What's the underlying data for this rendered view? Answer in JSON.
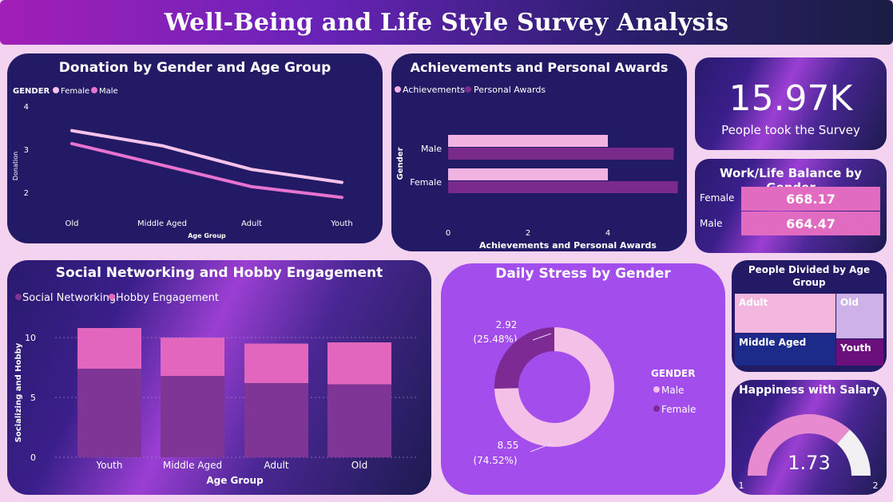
{
  "dashboard": {
    "title": "Well-Being and Life Style Survey Analysis"
  },
  "donation": {
    "title": "Donation by Gender and Age Group",
    "legend_title": "GENDER",
    "series_names": [
      "Female",
      "Male"
    ],
    "xlabel": "Age Group",
    "ylabel": "Donation",
    "yticks": [
      "4",
      "3",
      "2"
    ],
    "categories": [
      "Old",
      "Middle Aged",
      "Adult",
      "Youth"
    ]
  },
  "achievements": {
    "title": "Achievements and Personal Awards",
    "legend": [
      "Achievements",
      "Personal Awards"
    ],
    "ylabel": "Gender",
    "xlabel": "Achievements and Personal Awards",
    "categories": [
      "Male",
      "Female"
    ],
    "xticks": [
      "0",
      "2",
      "4"
    ]
  },
  "kpi": {
    "value": "15.97K",
    "label": "People took the Survey"
  },
  "worklife": {
    "title": "Work/Life Balance by Gender",
    "rows": [
      {
        "label": "Female",
        "value": "668.17"
      },
      {
        "label": "Male",
        "value": "664.47"
      }
    ]
  },
  "social": {
    "title": "Social Networking and Hobby Engagement",
    "legend": [
      "Social Networking",
      "Hobby Engagement"
    ],
    "ylabel": "Socializing and Hobby",
    "xlabel": "Age Group",
    "yticks": [
      "10",
      "5",
      "0"
    ],
    "categories": [
      "Youth",
      "Middle Aged",
      "Adult",
      "Old"
    ]
  },
  "stress": {
    "title": "Daily Stress by Gender",
    "legend_title": "GENDER",
    "legend": [
      "Male",
      "Female"
    ],
    "male_value": "8.55",
    "male_pct": "(74.52%)",
    "female_value": "2.92",
    "female_pct": "(25.48%)"
  },
  "age_split": {
    "title": "People Divided by Age Group",
    "cells": [
      "Adult",
      "Old",
      "Middle Aged",
      "Youth"
    ]
  },
  "happiness": {
    "title": "Happiness with Salary",
    "value": "1.73",
    "min": "1",
    "max": "2"
  },
  "colors": {
    "female": "#f6c3ea",
    "male": "#e673cf",
    "achievements": "#f2b3e3",
    "personal_awards": "#7a2a8a",
    "social_networking": "#7e3596",
    "hobby": "#e266bd",
    "donut_male": "#f5c0e8",
    "donut_female": "#7d2a95",
    "gauge_fill": "#e78ad0",
    "gauge_track": "#f2f0f2"
  },
  "chart_data": [
    {
      "type": "line",
      "title": "Donation by Gender and Age Group",
      "xlabel": "Age Group",
      "ylabel": "Donation",
      "categories": [
        "Old",
        "Middle Aged",
        "Adult",
        "Youth"
      ],
      "ylim": [
        1.5,
        4
      ],
      "series": [
        {
          "name": "Female",
          "values": [
            3.45,
            3.1,
            2.55,
            2.25
          ]
        },
        {
          "name": "Male",
          "values": [
            3.15,
            2.65,
            2.15,
            1.9
          ]
        }
      ]
    },
    {
      "type": "bar",
      "orientation": "horizontal",
      "title": "Achievements and Personal Awards",
      "xlabel": "Achievements and Personal Awards",
      "ylabel": "Gender",
      "categories": [
        "Male",
        "Female"
      ],
      "xlim": [
        0,
        6
      ],
      "series": [
        {
          "name": "Achievements",
          "values": [
            4.0,
            4.0
          ]
        },
        {
          "name": "Personal Awards",
          "values": [
            5.65,
            5.75
          ]
        }
      ]
    },
    {
      "type": "bar",
      "stacked": true,
      "title": "Social Networking and Hobby Engagement",
      "xlabel": "Age Group",
      "ylabel": "Socializing and Hobby",
      "categories": [
        "Youth",
        "Middle Aged",
        "Adult",
        "Old"
      ],
      "ylim": [
        0,
        12
      ],
      "series": [
        {
          "name": "Social Networking",
          "values": [
            7.4,
            6.8,
            6.2,
            6.1
          ]
        },
        {
          "name": "Hobby Engagement",
          "values": [
            3.4,
            3.2,
            3.3,
            3.5
          ]
        }
      ]
    },
    {
      "type": "pie",
      "donut": true,
      "title": "Daily Stress by Gender",
      "categories": [
        "Male",
        "Female"
      ],
      "values": [
        8.55,
        2.92
      ],
      "percents": [
        74.52,
        25.48
      ]
    },
    {
      "type": "gauge",
      "title": "Happiness with Salary",
      "value": 1.73,
      "min": 1,
      "max": 2
    }
  ]
}
